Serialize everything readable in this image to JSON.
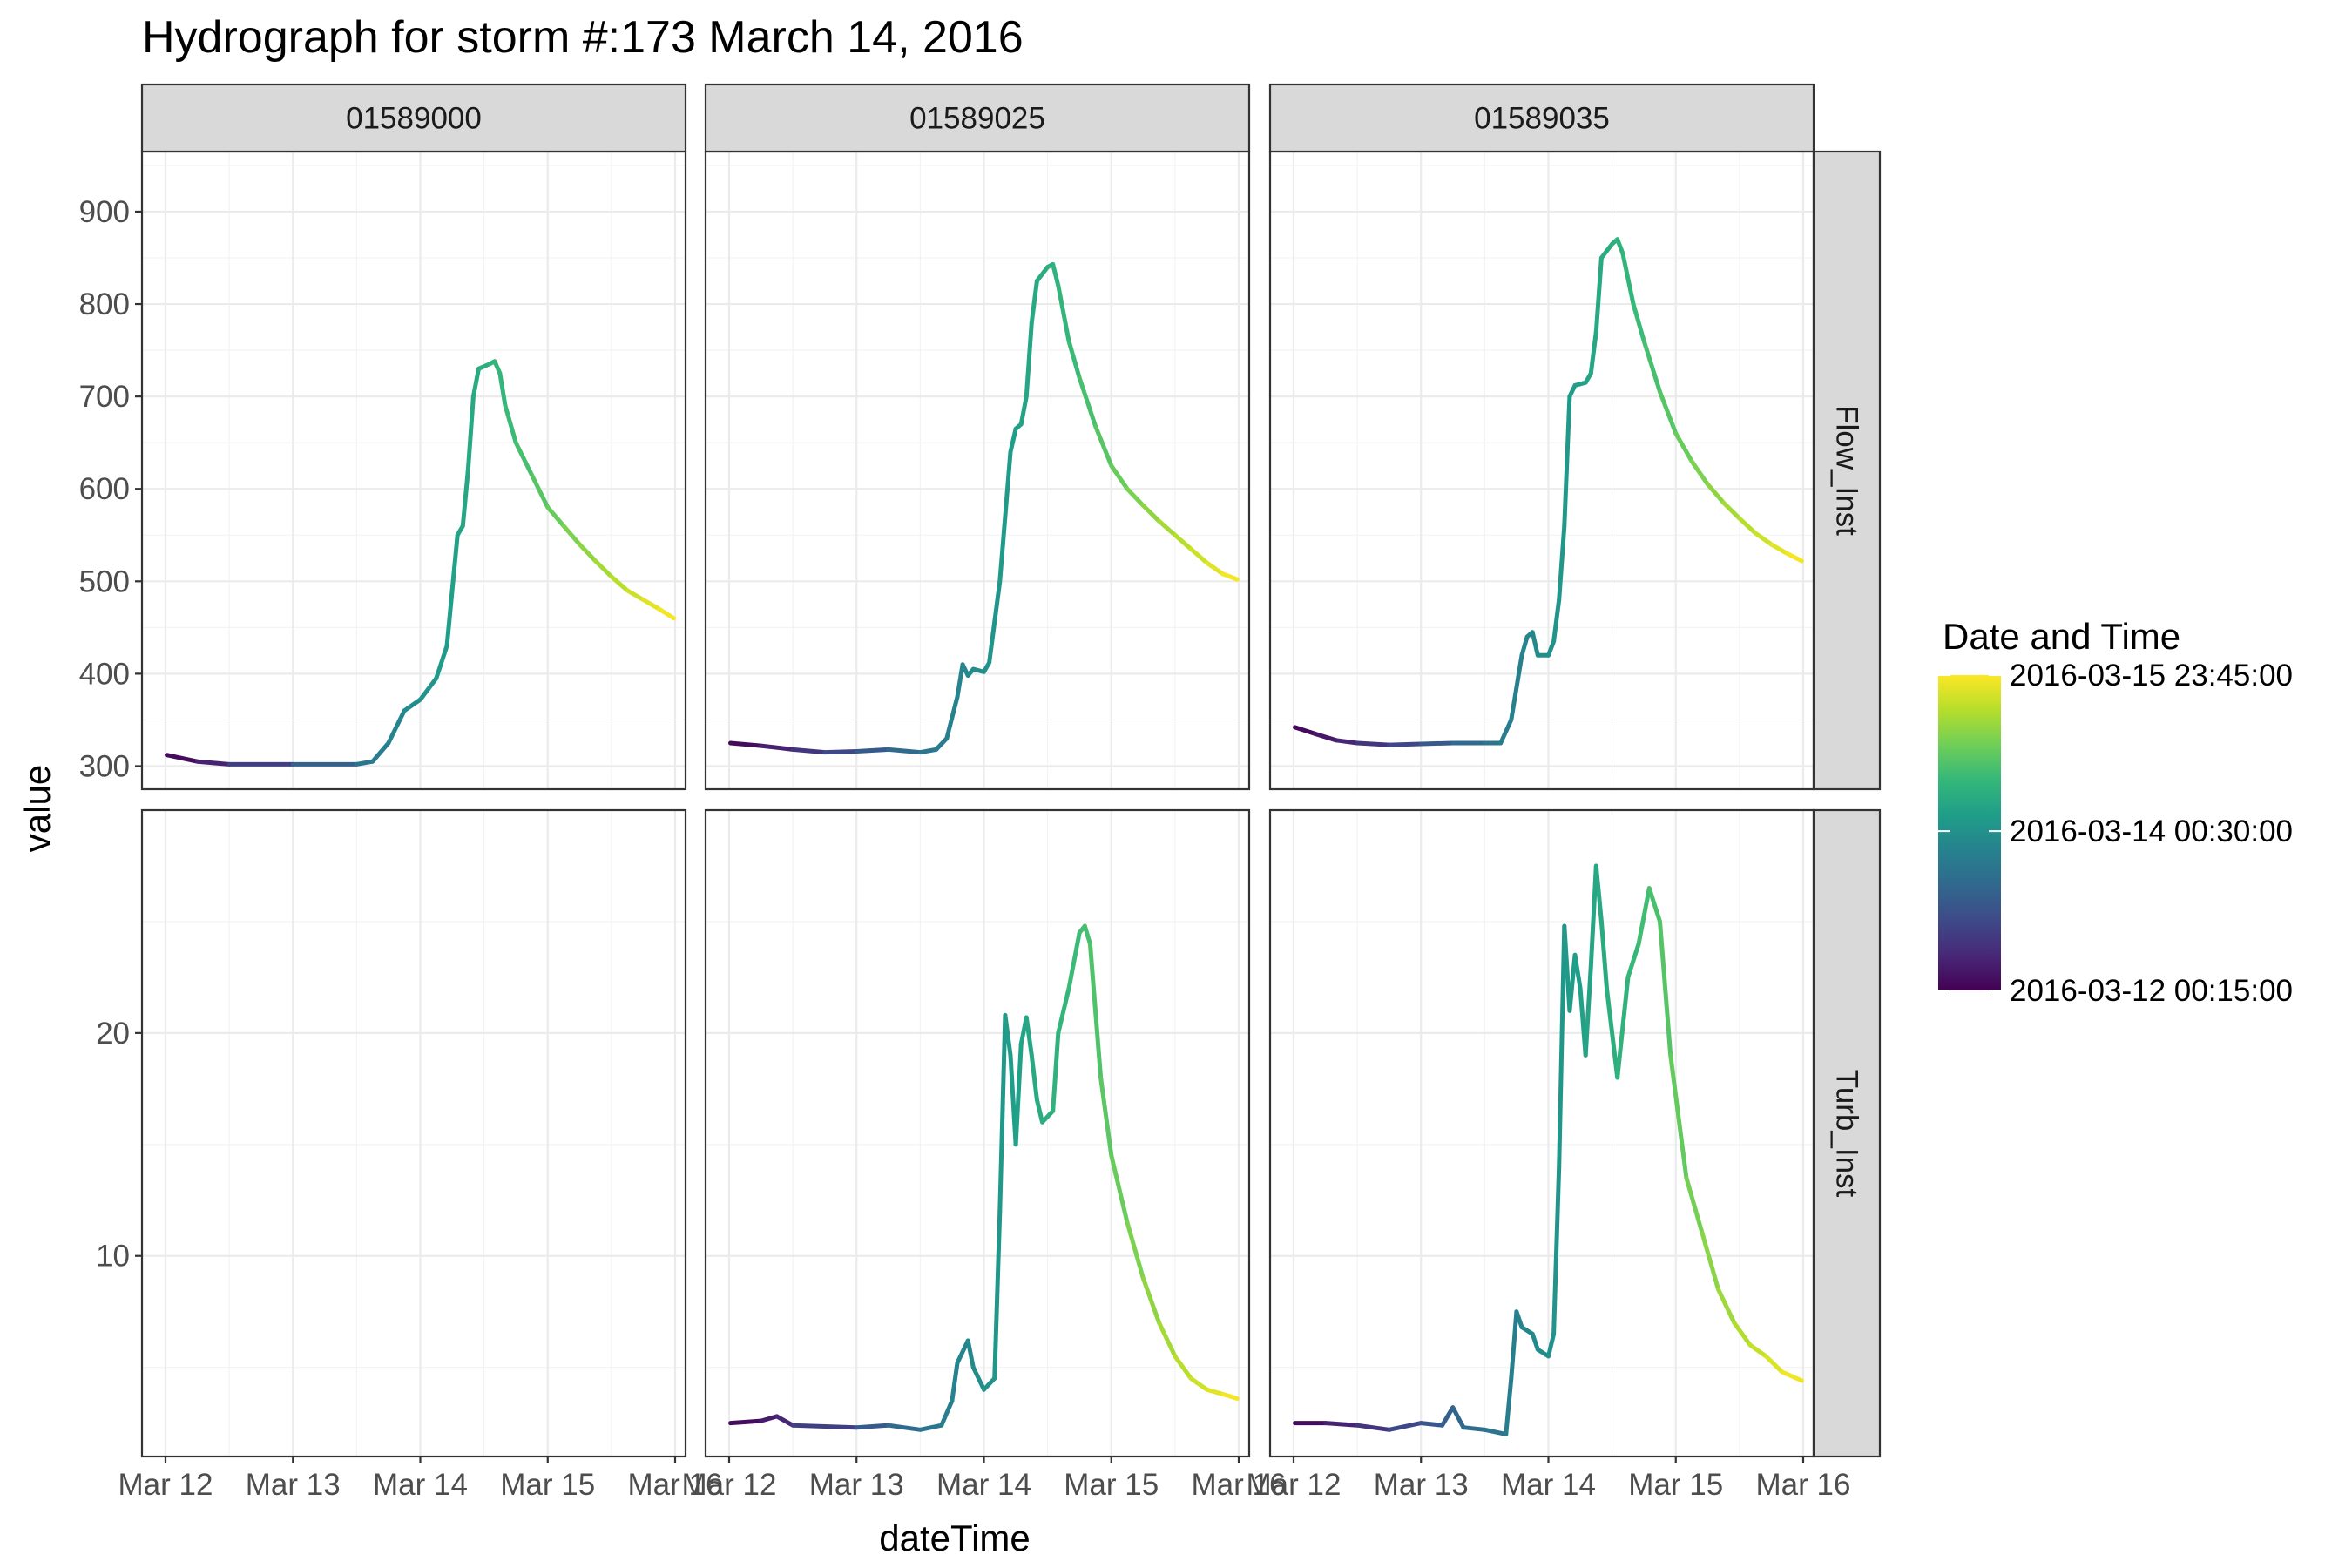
{
  "chart_data": {
    "type": "line",
    "title": "Hydrograph for storm #:173   March 14, 2016",
    "xlabel": "dateTime",
    "ylabel": "value",
    "x_ticks": [
      "Mar 12",
      "Mar 13",
      "Mar 14",
      "Mar 15",
      "Mar 16"
    ],
    "x_range": [
      "2016-03-12 00:15",
      "2016-03-15 23:45"
    ],
    "facet_columns": [
      "01589000",
      "01589025",
      "01589035"
    ],
    "facet_rows": [
      "Flow_Inst",
      "Turb_Inst"
    ],
    "y_scales": "free per row",
    "grid": true,
    "rows": [
      {
        "name": "Flow_Inst",
        "ylim": [
          275,
          965
        ],
        "y_ticks": [
          300,
          400,
          500,
          600,
          700,
          800,
          900
        ],
        "y_tick_labels": [
          "300",
          "400",
          "500",
          "600",
          "700",
          "800",
          "900"
        ]
      },
      {
        "name": "Turb_Inst",
        "ylim": [
          1,
          30
        ],
        "y_ticks": [
          10,
          20
        ],
        "y_tick_labels": [
          "10",
          "20"
        ]
      }
    ],
    "series": [
      {
        "site": "01589000",
        "parameter": "Flow_Inst",
        "points": [
          [
            "2016-03-12 00:15",
            312
          ],
          [
            "2016-03-12 06:00",
            305
          ],
          [
            "2016-03-12 12:00",
            302
          ],
          [
            "2016-03-13 00:00",
            302
          ],
          [
            "2016-03-13 12:00",
            302
          ],
          [
            "2016-03-13 15:00",
            305
          ],
          [
            "2016-03-13 18:00",
            325
          ],
          [
            "2016-03-13 21:00",
            360
          ],
          [
            "2016-03-14 00:00",
            372
          ],
          [
            "2016-03-14 03:00",
            395
          ],
          [
            "2016-03-14 05:00",
            430
          ],
          [
            "2016-03-14 06:00",
            490
          ],
          [
            "2016-03-14 07:00",
            550
          ],
          [
            "2016-03-14 08:00",
            560
          ],
          [
            "2016-03-14 09:00",
            620
          ],
          [
            "2016-03-14 10:00",
            700
          ],
          [
            "2016-03-14 11:00",
            730
          ],
          [
            "2016-03-14 13:00",
            735
          ],
          [
            "2016-03-14 14:00",
            738
          ],
          [
            "2016-03-14 15:00",
            725
          ],
          [
            "2016-03-14 16:00",
            690
          ],
          [
            "2016-03-14 18:00",
            650
          ],
          [
            "2016-03-14 21:00",
            615
          ],
          [
            "2016-03-15 00:00",
            580
          ],
          [
            "2016-03-15 03:00",
            560
          ],
          [
            "2016-03-15 06:00",
            540
          ],
          [
            "2016-03-15 09:00",
            522
          ],
          [
            "2016-03-15 12:00",
            505
          ],
          [
            "2016-03-15 15:00",
            490
          ],
          [
            "2016-03-15 18:00",
            480
          ],
          [
            "2016-03-15 21:00",
            470
          ],
          [
            "2016-03-15 23:45",
            460
          ]
        ]
      },
      {
        "site": "01589025",
        "parameter": "Flow_Inst",
        "points": [
          [
            "2016-03-12 00:15",
            325
          ],
          [
            "2016-03-12 06:00",
            322
          ],
          [
            "2016-03-12 12:00",
            318
          ],
          [
            "2016-03-12 18:00",
            315
          ],
          [
            "2016-03-13 00:00",
            316
          ],
          [
            "2016-03-13 06:00",
            318
          ],
          [
            "2016-03-13 12:00",
            315
          ],
          [
            "2016-03-13 15:00",
            318
          ],
          [
            "2016-03-13 17:00",
            330
          ],
          [
            "2016-03-13 19:00",
            375
          ],
          [
            "2016-03-13 20:00",
            410
          ],
          [
            "2016-03-13 21:00",
            398
          ],
          [
            "2016-03-13 22:00",
            405
          ],
          [
            "2016-03-14 00:00",
            402
          ],
          [
            "2016-03-14 01:00",
            412
          ],
          [
            "2016-03-14 03:00",
            500
          ],
          [
            "2016-03-14 05:00",
            640
          ],
          [
            "2016-03-14 06:00",
            665
          ],
          [
            "2016-03-14 07:00",
            670
          ],
          [
            "2016-03-14 08:00",
            700
          ],
          [
            "2016-03-14 09:00",
            780
          ],
          [
            "2016-03-14 10:00",
            825
          ],
          [
            "2016-03-14 12:00",
            840
          ],
          [
            "2016-03-14 13:00",
            843
          ],
          [
            "2016-03-14 14:00",
            820
          ],
          [
            "2016-03-14 16:00",
            760
          ],
          [
            "2016-03-14 18:00",
            720
          ],
          [
            "2016-03-14 21:00",
            668
          ],
          [
            "2016-03-15 00:00",
            625
          ],
          [
            "2016-03-15 03:00",
            600
          ],
          [
            "2016-03-15 06:00",
            582
          ],
          [
            "2016-03-15 09:00",
            565
          ],
          [
            "2016-03-15 12:00",
            550
          ],
          [
            "2016-03-15 15:00",
            535
          ],
          [
            "2016-03-15 18:00",
            520
          ],
          [
            "2016-03-15 21:00",
            508
          ],
          [
            "2016-03-15 23:45",
            502
          ]
        ]
      },
      {
        "site": "01589035",
        "parameter": "Flow_Inst",
        "points": [
          [
            "2016-03-12 00:15",
            342
          ],
          [
            "2016-03-12 04:00",
            335
          ],
          [
            "2016-03-12 08:00",
            328
          ],
          [
            "2016-03-12 12:00",
            325
          ],
          [
            "2016-03-12 18:00",
            323
          ],
          [
            "2016-03-13 00:00",
            324
          ],
          [
            "2016-03-13 06:00",
            325
          ],
          [
            "2016-03-13 12:00",
            325
          ],
          [
            "2016-03-13 15:00",
            325
          ],
          [
            "2016-03-13 17:00",
            350
          ],
          [
            "2016-03-13 19:00",
            420
          ],
          [
            "2016-03-13 20:00",
            440
          ],
          [
            "2016-03-13 21:00",
            445
          ],
          [
            "2016-03-13 22:00",
            420
          ],
          [
            "2016-03-14 00:00",
            420
          ],
          [
            "2016-03-14 01:00",
            435
          ],
          [
            "2016-03-14 02:00",
            480
          ],
          [
            "2016-03-14 03:00",
            560
          ],
          [
            "2016-03-14 04:00",
            700
          ],
          [
            "2016-03-14 05:00",
            712
          ],
          [
            "2016-03-14 07:00",
            715
          ],
          [
            "2016-03-14 08:00",
            725
          ],
          [
            "2016-03-14 09:00",
            770
          ],
          [
            "2016-03-14 10:00",
            850
          ],
          [
            "2016-03-14 12:00",
            865
          ],
          [
            "2016-03-14 13:00",
            870
          ],
          [
            "2016-03-14 14:00",
            855
          ],
          [
            "2016-03-14 16:00",
            800
          ],
          [
            "2016-03-14 18:00",
            760
          ],
          [
            "2016-03-14 21:00",
            705
          ],
          [
            "2016-03-15 00:00",
            660
          ],
          [
            "2016-03-15 03:00",
            630
          ],
          [
            "2016-03-15 06:00",
            605
          ],
          [
            "2016-03-15 09:00",
            585
          ],
          [
            "2016-03-15 12:00",
            568
          ],
          [
            "2016-03-15 15:00",
            552
          ],
          [
            "2016-03-15 18:00",
            540
          ],
          [
            "2016-03-15 21:00",
            530
          ],
          [
            "2016-03-15 23:45",
            522
          ]
        ]
      },
      {
        "site": "01589000",
        "parameter": "Turb_Inst",
        "points": []
      },
      {
        "site": "01589025",
        "parameter": "Turb_Inst",
        "points": [
          [
            "2016-03-12 00:15",
            2.5
          ],
          [
            "2016-03-12 06:00",
            2.6
          ],
          [
            "2016-03-12 09:00",
            2.8
          ],
          [
            "2016-03-12 12:00",
            2.4
          ],
          [
            "2016-03-13 00:00",
            2.3
          ],
          [
            "2016-03-13 06:00",
            2.4
          ],
          [
            "2016-03-13 12:00",
            2.2
          ],
          [
            "2016-03-13 16:00",
            2.4
          ],
          [
            "2016-03-13 18:00",
            3.5
          ],
          [
            "2016-03-13 19:00",
            5.2
          ],
          [
            "2016-03-13 21:00",
            6.2
          ],
          [
            "2016-03-13 22:00",
            5.0
          ],
          [
            "2016-03-14 00:00",
            4.0
          ],
          [
            "2016-03-14 02:00",
            4.5
          ],
          [
            "2016-03-14 03:00",
            12.0
          ],
          [
            "2016-03-14 04:00",
            20.8
          ],
          [
            "2016-03-14 05:00",
            19.0
          ],
          [
            "2016-03-14 06:00",
            15.0
          ],
          [
            "2016-03-14 07:00",
            19.5
          ],
          [
            "2016-03-14 08:00",
            20.7
          ],
          [
            "2016-03-14 09:00",
            19.0
          ],
          [
            "2016-03-14 10:00",
            17.0
          ],
          [
            "2016-03-14 11:00",
            16.0
          ],
          [
            "2016-03-14 13:00",
            16.5
          ],
          [
            "2016-03-14 14:00",
            20.0
          ],
          [
            "2016-03-14 16:00",
            22.0
          ],
          [
            "2016-03-14 18:00",
            24.5
          ],
          [
            "2016-03-14 19:00",
            24.8
          ],
          [
            "2016-03-14 20:00",
            24.0
          ],
          [
            "2016-03-14 22:00",
            18.0
          ],
          [
            "2016-03-15 00:00",
            14.5
          ],
          [
            "2016-03-15 03:00",
            11.5
          ],
          [
            "2016-03-15 06:00",
            9.0
          ],
          [
            "2016-03-15 09:00",
            7.0
          ],
          [
            "2016-03-15 12:00",
            5.5
          ],
          [
            "2016-03-15 15:00",
            4.5
          ],
          [
            "2016-03-15 18:00",
            4.0
          ],
          [
            "2016-03-15 21:00",
            3.8
          ],
          [
            "2016-03-15 23:45",
            3.6
          ]
        ]
      },
      {
        "site": "01589035",
        "parameter": "Turb_Inst",
        "points": [
          [
            "2016-03-12 00:15",
            2.5
          ],
          [
            "2016-03-12 06:00",
            2.5
          ],
          [
            "2016-03-12 12:00",
            2.4
          ],
          [
            "2016-03-12 18:00",
            2.2
          ],
          [
            "2016-03-13 00:00",
            2.5
          ],
          [
            "2016-03-13 04:00",
            2.4
          ],
          [
            "2016-03-13 06:00",
            3.2
          ],
          [
            "2016-03-13 08:00",
            2.3
          ],
          [
            "2016-03-13 12:00",
            2.2
          ],
          [
            "2016-03-13 16:00",
            2.0
          ],
          [
            "2016-03-13 17:00",
            4.5
          ],
          [
            "2016-03-13 18:00",
            7.5
          ],
          [
            "2016-03-13 19:00",
            6.8
          ],
          [
            "2016-03-13 21:00",
            6.5
          ],
          [
            "2016-03-13 22:00",
            5.8
          ],
          [
            "2016-03-14 00:00",
            5.5
          ],
          [
            "2016-03-14 01:00",
            6.5
          ],
          [
            "2016-03-14 02:00",
            14.0
          ],
          [
            "2016-03-14 03:00",
            24.8
          ],
          [
            "2016-03-14 04:00",
            21.0
          ],
          [
            "2016-03-14 05:00",
            23.5
          ],
          [
            "2016-03-14 06:00",
            22.0
          ],
          [
            "2016-03-14 07:00",
            19.0
          ],
          [
            "2016-03-14 08:00",
            23.0
          ],
          [
            "2016-03-14 09:00",
            27.5
          ],
          [
            "2016-03-14 10:00",
            25.0
          ],
          [
            "2016-03-14 11:00",
            22.0
          ],
          [
            "2016-03-14 13:00",
            18.0
          ],
          [
            "2016-03-14 15:00",
            22.5
          ],
          [
            "2016-03-14 17:00",
            24.0
          ],
          [
            "2016-03-14 19:00",
            26.5
          ],
          [
            "2016-03-14 21:00",
            25.0
          ],
          [
            "2016-03-14 23:00",
            19.0
          ],
          [
            "2016-03-15 02:00",
            13.5
          ],
          [
            "2016-03-15 05:00",
            11.0
          ],
          [
            "2016-03-15 08:00",
            8.5
          ],
          [
            "2016-03-15 11:00",
            7.0
          ],
          [
            "2016-03-15 14:00",
            6.0
          ],
          [
            "2016-03-15 17:00",
            5.5
          ],
          [
            "2016-03-15 20:00",
            4.8
          ],
          [
            "2016-03-15 23:45",
            4.4
          ]
        ]
      }
    ],
    "legend": {
      "title": "Date and Time",
      "position": "right",
      "colormap": "viridis",
      "labels": [
        "2016-03-15 23:45:00",
        "2016-03-14 00:30:00",
        "2016-03-12 00:15:00"
      ],
      "label_values": [
        "2016-03-15 23:45",
        "2016-03-14 00:30",
        "2016-03-12 00:15"
      ]
    }
  }
}
